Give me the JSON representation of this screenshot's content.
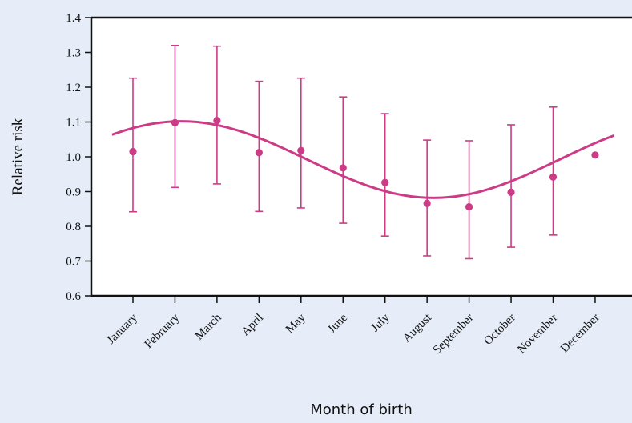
{
  "chart_data": {
    "type": "scatter",
    "title": "",
    "xlabel": "Month of birth",
    "ylabel": "Relative risk",
    "ylim": [
      0.6,
      1.4
    ],
    "yticks": [
      "0.6",
      "0.7",
      "0.8",
      "0.9",
      "1.0",
      "1.1",
      "1.2",
      "1.3",
      "1.4"
    ],
    "categories": [
      "January",
      "February",
      "March",
      "April",
      "May",
      "June",
      "July",
      "August",
      "September",
      "October",
      "November",
      "December"
    ],
    "series": [
      {
        "values": [
          1.015,
          1.098,
          1.104,
          1.012,
          1.018,
          0.968,
          0.926,
          0.866,
          0.856,
          0.898,
          0.942,
          1.005
        ],
        "lower": [
          0.842,
          0.912,
          0.922,
          0.843,
          0.853,
          0.809,
          0.772,
          0.715,
          0.707,
          0.74,
          0.775,
          null
        ],
        "upper": [
          1.226,
          1.32,
          1.318,
          1.217,
          1.226,
          1.172,
          1.124,
          1.048,
          1.046,
          1.092,
          1.143,
          null
        ]
      }
    ],
    "fit_curve": {
      "type": "sinusoid",
      "mean": 0.992,
      "amplitude": 0.11,
      "peak_month": 2.15
    },
    "grid": false,
    "legend": "none",
    "color": "#cc3c86"
  }
}
